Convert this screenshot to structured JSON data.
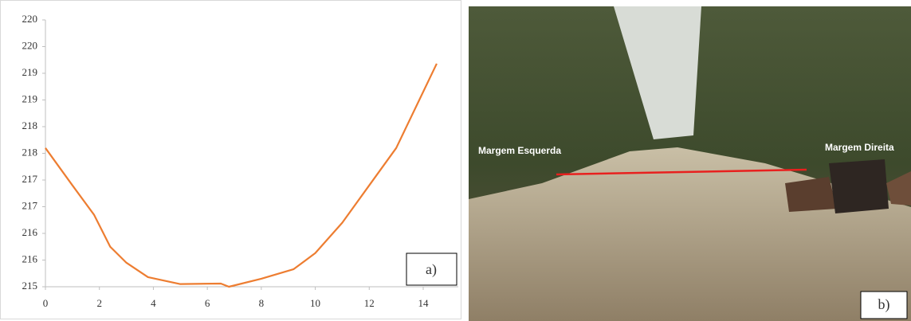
{
  "chart_data": {
    "type": "line",
    "x": [
      0,
      1,
      1.8,
      2.4,
      3,
      3.8,
      5,
      6.5,
      6.8,
      8,
      9.2,
      10,
      11,
      12,
      13,
      14.5
    ],
    "series": [
      {
        "color": "#ED7D31",
        "values": [
          217.6,
          216.9,
          216.35,
          215.75,
          215.45,
          215.18,
          215.05,
          215.06,
          215.0,
          215.15,
          215.33,
          215.63,
          216.2,
          216.9,
          217.6,
          219.18
        ]
      }
    ],
    "xlim": [
      0,
      15.3
    ],
    "ylim": [
      215,
      220
    ],
    "xticks": [
      0,
      2,
      4,
      6,
      8,
      10,
      12,
      14
    ],
    "yticks": [
      215,
      {
        "value": 215.5,
        "label": "216"
      },
      216,
      {
        "value": 216.5,
        "label": "217"
      },
      217,
      {
        "value": 217.5,
        "label": "218"
      },
      218,
      {
        "value": 218.5,
        "label": "219"
      },
      219,
      {
        "value": 219.5,
        "label": "220"
      },
      220
    ],
    "grid": false,
    "annotation": "a)"
  },
  "photo": {
    "labels": [
      "Margem Esquerda",
      "Margem Direita"
    ],
    "panel_label": "b)"
  }
}
